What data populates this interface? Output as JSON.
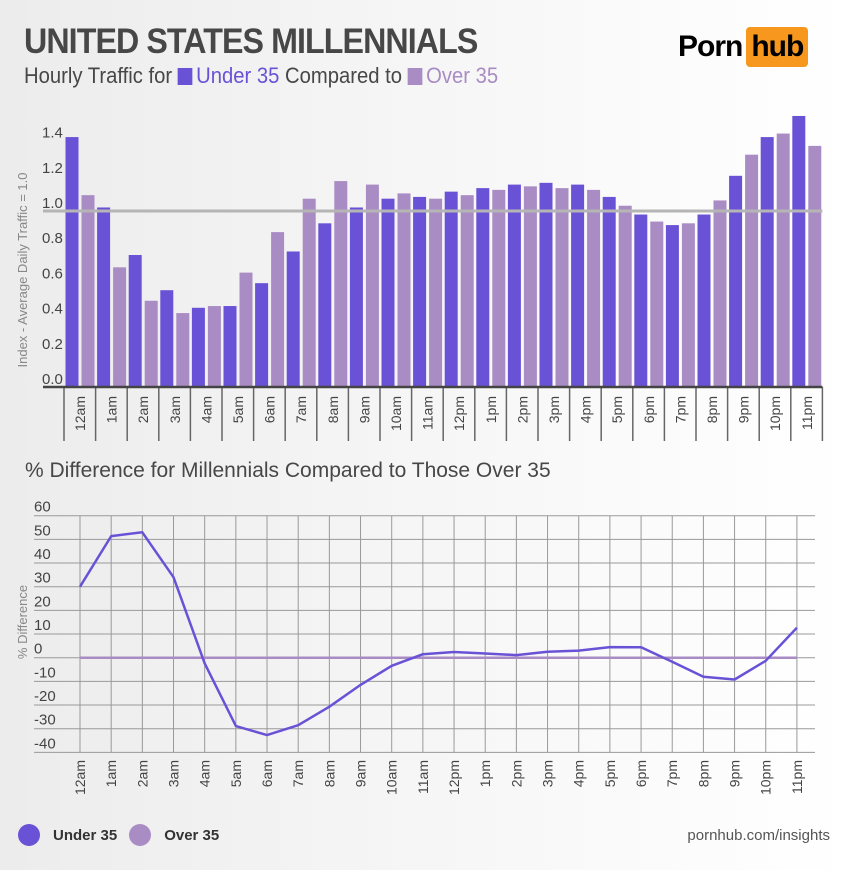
{
  "header": {
    "title": "UNITED STATES MILLENNIALS",
    "subtitle_prefix": "Hourly Traffic for",
    "subtitle_mid": "Compared to",
    "series_a": "Under 35",
    "series_b": "Over 35"
  },
  "logo": {
    "part1": "Porn",
    "part2": "hub"
  },
  "colors": {
    "under35": "#6a52d6",
    "over35": "#a98cc4",
    "logo_accent": "#f7971d"
  },
  "chart_data": [
    {
      "type": "bar",
      "title": "",
      "ylabel": "Index - Average Daily Traffic = 1.0",
      "ylim": [
        0,
        1.5
      ],
      "yticks": [
        "0.0",
        "0.2",
        "0.4",
        "0.6",
        "0.8",
        "1.0",
        "1.2",
        "1.4"
      ],
      "reference_line": 1.0,
      "categories": [
        "12am",
        "1am",
        "2am",
        "3am",
        "4am",
        "5am",
        "6am",
        "7am",
        "8am",
        "9am",
        "10am",
        "11am",
        "12pm",
        "1pm",
        "2pm",
        "3pm",
        "4pm",
        "5pm",
        "6pm",
        "7pm",
        "8pm",
        "9pm",
        "10pm",
        "11pm"
      ],
      "series": [
        {
          "name": "Under 35",
          "values": [
            1.42,
            1.02,
            0.75,
            0.55,
            0.45,
            0.46,
            0.59,
            0.77,
            0.93,
            1.02,
            1.07,
            1.08,
            1.11,
            1.13,
            1.15,
            1.16,
            1.15,
            1.08,
            0.98,
            0.92,
            0.98,
            1.2,
            1.42,
            1.54
          ]
        },
        {
          "name": "Over 35",
          "values": [
            1.09,
            0.68,
            0.49,
            0.42,
            0.46,
            0.65,
            0.88,
            1.07,
            1.17,
            1.15,
            1.1,
            1.07,
            1.09,
            1.12,
            1.14,
            1.13,
            1.12,
            1.03,
            0.94,
            0.93,
            1.06,
            1.32,
            1.44,
            1.37
          ]
        }
      ]
    },
    {
      "type": "line",
      "title": "% Difference for Millennials Compared to Those Over 35",
      "ylabel": "% Difference",
      "ylim": [
        -40,
        60
      ],
      "yticks": [
        "60",
        "50",
        "40",
        "30",
        "20",
        "10",
        "0",
        "-10",
        "-20",
        "-30",
        "-40"
      ],
      "grid": true,
      "categories": [
        "12am",
        "1am",
        "2am",
        "3am",
        "4am",
        "5am",
        "6am",
        "7am",
        "8am",
        "9am",
        "10am",
        "11am",
        "12pm",
        "1pm",
        "2pm",
        "3pm",
        "4pm",
        "5pm",
        "6pm",
        "7pm",
        "8pm",
        "9pm",
        "10pm",
        "11pm"
      ],
      "series": [
        {
          "name": "Under 35",
          "values": [
            30,
            51.4,
            53,
            34,
            -2.4,
            -28.9,
            -32.7,
            -28.5,
            -20.7,
            -11.5,
            -3.4,
            1.5,
            2.4,
            1.8,
            1.1,
            2.5,
            3,
            4.5,
            4.4,
            -1.7,
            -8,
            -9.2,
            -1.3,
            12.7
          ]
        },
        {
          "name": "Over 35",
          "values": [
            0,
            0,
            0,
            0,
            0,
            0,
            0,
            0,
            0,
            0,
            0,
            0,
            0,
            0,
            0,
            0,
            0,
            0,
            0,
            0,
            0,
            0,
            0,
            0
          ]
        }
      ]
    }
  ],
  "legend": [
    {
      "label": "Under 35"
    },
    {
      "label": "Over 35"
    }
  ],
  "footer": {
    "source": "pornhub.com/insights"
  }
}
